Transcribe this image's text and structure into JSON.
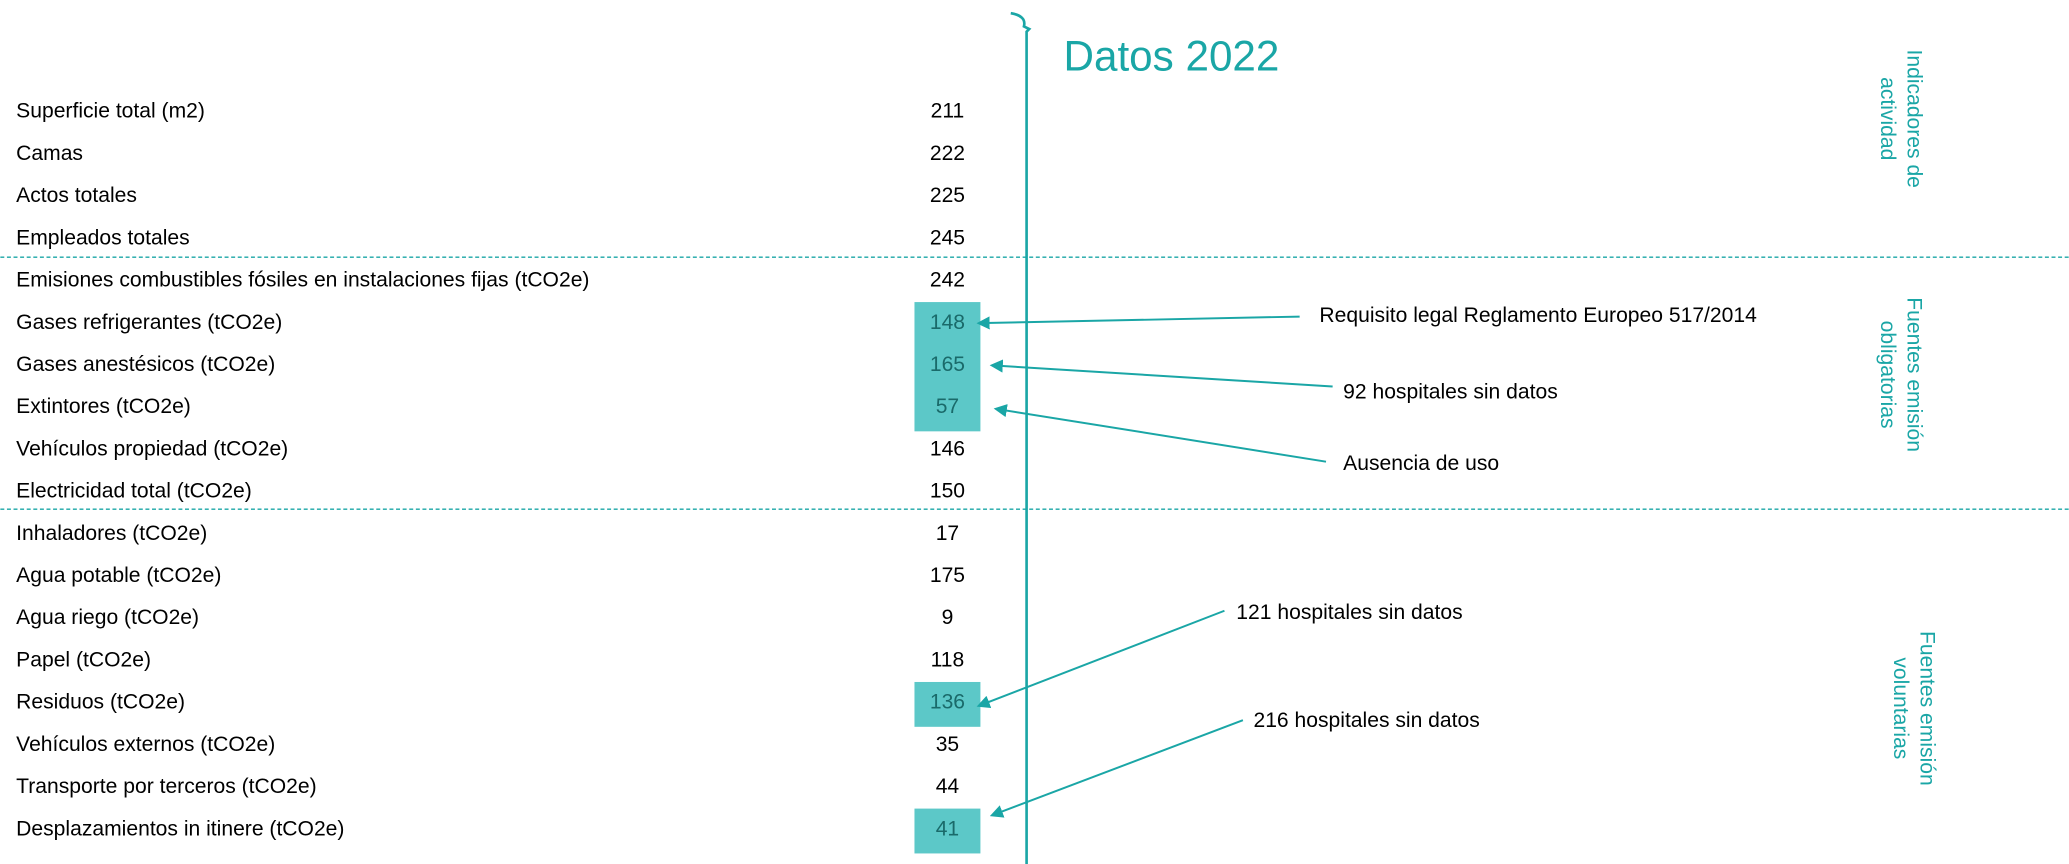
{
  "title": "Datos 2022",
  "rows": [
    {
      "label": "Superficie total (m2)",
      "value": 211
    },
    {
      "label": "Camas",
      "value": 222
    },
    {
      "label": "Actos totales",
      "value": 225
    },
    {
      "label": "Empleados totales",
      "value": 245
    },
    {
      "label": "Emisiones combustibles fósiles en instalaciones fijas (tCO2e)",
      "value": 242
    },
    {
      "label": "Gases refrigerantes (tCO2e)",
      "value": 148,
      "highlight": true
    },
    {
      "label": "Gases anestésicos (tCO2e)",
      "value": 165,
      "highlight": true
    },
    {
      "label": "Extintores (tCO2e)",
      "value": 57,
      "highlight": true
    },
    {
      "label": "Vehículos propiedad (tCO2e)",
      "value": 146
    },
    {
      "label": "Electricidad total (tCO2e)",
      "value": 150
    },
    {
      "label": "Inhaladores (tCO2e)",
      "value": 17
    },
    {
      "label": "Agua potable (tCO2e)",
      "value": 175
    },
    {
      "label": "Agua riego (tCO2e)",
      "value": 9
    },
    {
      "label": "Papel (tCO2e)",
      "value": 118
    },
    {
      "label": "Residuos (tCO2e)",
      "value": 136,
      "highlight": true
    },
    {
      "label": "Vehículos externos (tCO2e)",
      "value": 35
    },
    {
      "label": "Transporte por terceros (tCO2e)",
      "value": 44
    },
    {
      "label": "Desplazamientos in itinere (tCO2e)",
      "value": 41,
      "highlight": true
    }
  ],
  "annotations": [
    "Requisito legal Reglamento Europeo 517/2014",
    "92 hospitales sin datos",
    "Ausencia de uso",
    "121 hospitales sin datos",
    "216 hospitales sin datos"
  ],
  "sections": [
    [
      "Indicadores de",
      "actividad"
    ],
    [
      "Fuentes emisión",
      "obligatorias"
    ],
    [
      "Fuentes emisión",
      "voluntarias"
    ]
  ]
}
